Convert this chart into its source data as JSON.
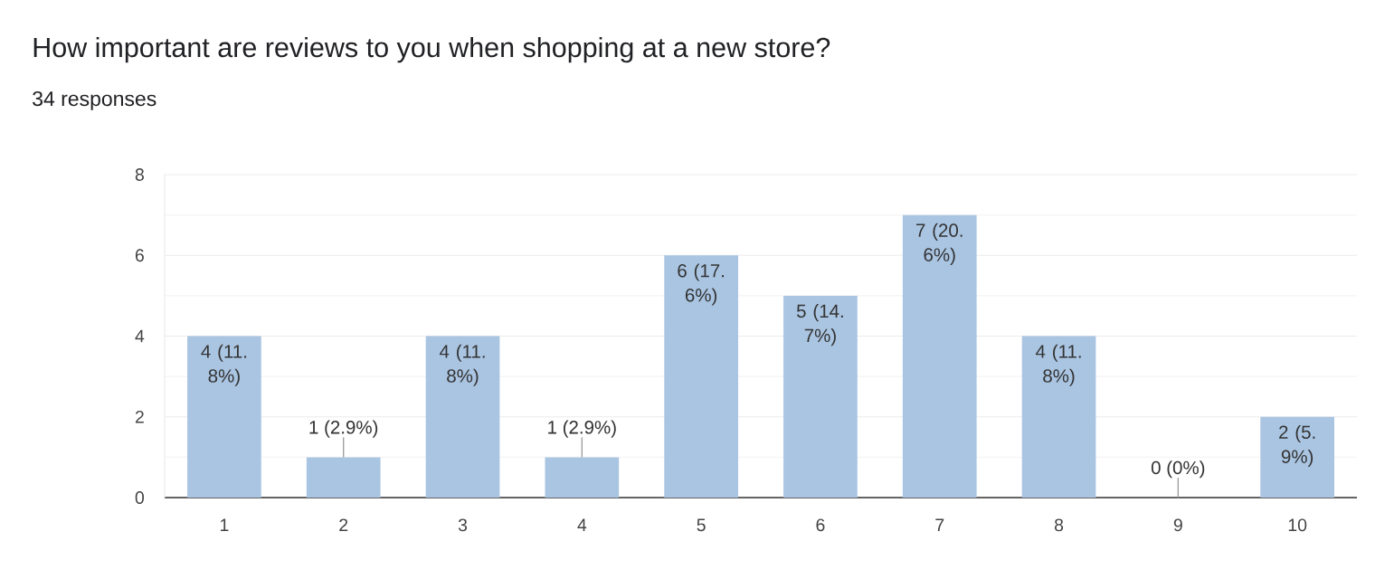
{
  "chart_data": {
    "type": "bar",
    "title": "How important are reviews to you when shopping at a new store?",
    "subtitle": "34 responses",
    "categories": [
      "1",
      "2",
      "3",
      "4",
      "5",
      "6",
      "7",
      "8",
      "9",
      "10"
    ],
    "values": [
      4,
      1,
      4,
      1,
      6,
      5,
      7,
      4,
      0,
      2
    ],
    "color": "#aac5e2",
    "value_labels": [
      "4 (11.8%)",
      "1 (2.9%)",
      "4 (11.8%)",
      "1 (2.9%)",
      "6 (17.6%)",
      "5 (14.7%)",
      "7 (20.6%)",
      "4 (11.8%)",
      "0 (0%)",
      "2 (5.9%)"
    ],
    "ylim": [
      0,
      8
    ],
    "yticks": [
      0,
      2,
      4,
      6,
      8
    ],
    "grid": "y"
  }
}
